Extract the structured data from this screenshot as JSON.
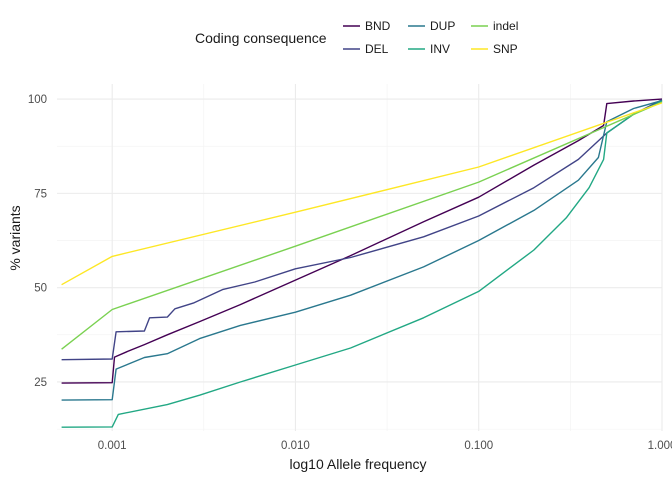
{
  "chart_data": {
    "type": "line",
    "xlabel": "log10 Allele frequency",
    "ylabel": "% variants",
    "x_scale": "log10",
    "xlim": [
      0.0005,
      1.0
    ],
    "ylim": [
      12,
      104
    ],
    "x_ticks": [
      0.001,
      0.01,
      0.1,
      1.0
    ],
    "x_tick_labels": [
      "0.001",
      "0.010",
      "0.100",
      "1.000"
    ],
    "y_ticks": [
      25,
      50,
      75,
      100
    ],
    "y_tick_labels": [
      "25",
      "50",
      "75",
      "100"
    ],
    "grid": true,
    "legend": {
      "title": "Coding consequence",
      "position": "top",
      "entries": [
        "BND",
        "DEL",
        "DUP",
        "INV",
        "indel",
        "SNP"
      ]
    },
    "series": [
      {
        "name": "BND",
        "color": "#440154",
        "points": [
          [
            0.00053,
            24.7
          ],
          [
            0.001,
            24.8
          ],
          [
            0.00103,
            31.6
          ],
          [
            0.0012,
            33.0
          ],
          [
            0.0015,
            34.9
          ],
          [
            0.002,
            37.5
          ],
          [
            0.003,
            41.0
          ],
          [
            0.005,
            45.5
          ],
          [
            0.01,
            52.0
          ],
          [
            0.02,
            58.5
          ],
          [
            0.05,
            67.5
          ],
          [
            0.1,
            74.0
          ],
          [
            0.2,
            82.5
          ],
          [
            0.35,
            89.0
          ],
          [
            0.48,
            93.0
          ],
          [
            0.5,
            98.8
          ],
          [
            0.7,
            99.5
          ],
          [
            1.0,
            100.0
          ]
        ]
      },
      {
        "name": "DEL",
        "color": "#414487",
        "points": [
          [
            0.00053,
            30.9
          ],
          [
            0.001,
            31.1
          ],
          [
            0.00105,
            38.3
          ],
          [
            0.0015,
            38.5
          ],
          [
            0.0016,
            42.0
          ],
          [
            0.002,
            42.2
          ],
          [
            0.0022,
            44.4
          ],
          [
            0.0028,
            46.0
          ],
          [
            0.004,
            49.5
          ],
          [
            0.006,
            51.5
          ],
          [
            0.01,
            55.0
          ],
          [
            0.02,
            58.0
          ],
          [
            0.05,
            63.5
          ],
          [
            0.1,
            69.0
          ],
          [
            0.2,
            76.5
          ],
          [
            0.35,
            84.0
          ],
          [
            0.5,
            91.0
          ],
          [
            0.7,
            96.0
          ],
          [
            1.0,
            99.8
          ]
        ]
      },
      {
        "name": "DUP",
        "color": "#2A788E",
        "points": [
          [
            0.00053,
            20.2
          ],
          [
            0.001,
            20.3
          ],
          [
            0.00105,
            28.4
          ],
          [
            0.0015,
            31.5
          ],
          [
            0.002,
            32.5
          ],
          [
            0.003,
            36.5
          ],
          [
            0.005,
            40.0
          ],
          [
            0.01,
            43.5
          ],
          [
            0.02,
            48.0
          ],
          [
            0.05,
            55.5
          ],
          [
            0.1,
            62.5
          ],
          [
            0.2,
            70.5
          ],
          [
            0.35,
            78.5
          ],
          [
            0.45,
            84.5
          ],
          [
            0.5,
            94.0
          ],
          [
            0.7,
            97.5
          ],
          [
            1.0,
            99.6
          ]
        ]
      },
      {
        "name": "INV",
        "color": "#22A884",
        "points": [
          [
            0.00053,
            13.0
          ],
          [
            0.001,
            13.1
          ],
          [
            0.00108,
            16.4
          ],
          [
            0.002,
            19.0
          ],
          [
            0.003,
            21.5
          ],
          [
            0.005,
            25.0
          ],
          [
            0.01,
            29.5
          ],
          [
            0.02,
            34.0
          ],
          [
            0.05,
            42.0
          ],
          [
            0.1,
            49.0
          ],
          [
            0.2,
            60.0
          ],
          [
            0.3,
            68.5
          ],
          [
            0.4,
            76.5
          ],
          [
            0.48,
            84.0
          ],
          [
            0.5,
            91.0
          ],
          [
            0.7,
            96.0
          ],
          [
            1.0,
            99.4
          ]
        ]
      },
      {
        "name": "indel",
        "color": "#7AD151",
        "points": [
          [
            0.00053,
            33.7
          ],
          [
            0.001,
            44.2
          ],
          [
            0.01,
            61.0
          ],
          [
            0.1,
            78.0
          ],
          [
            1.0,
            99.2
          ]
        ]
      },
      {
        "name": "SNP",
        "color": "#FDE725",
        "points": [
          [
            0.00053,
            50.8
          ],
          [
            0.001,
            58.3
          ],
          [
            0.01,
            70.0
          ],
          [
            0.1,
            82.0
          ],
          [
            1.0,
            99.0
          ]
        ]
      }
    ]
  }
}
